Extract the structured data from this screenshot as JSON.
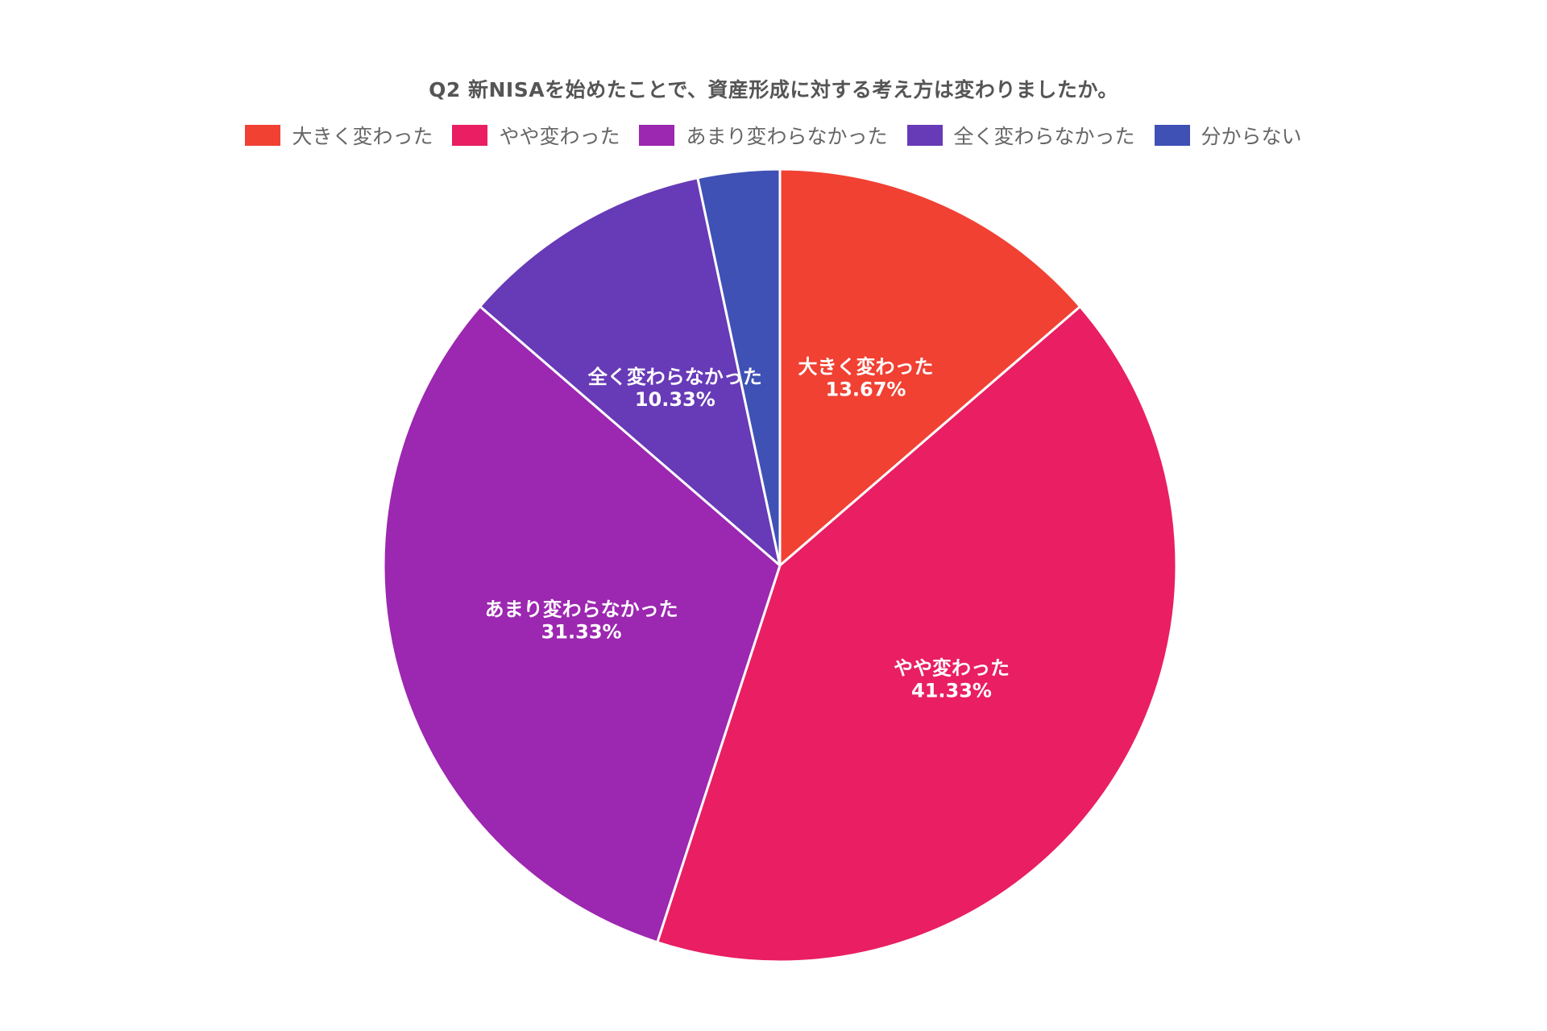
{
  "chart_data": {
    "type": "pie",
    "title": "Q2 新NISAを始めたことで、資産形成に対する考え方は変わりましたか。",
    "legend_position": "top",
    "categories": [
      "大きく変わった",
      "やや変わった",
      "あまり変わらなかった",
      "全く変わらなかった",
      "分からない"
    ],
    "values": [
      13.67,
      41.33,
      31.33,
      10.33,
      3.33
    ],
    "data_labels": [
      "13.67%",
      "41.33%",
      "31.33%",
      "10.33%",
      ""
    ],
    "show_label": [
      true,
      true,
      true,
      true,
      false
    ],
    "colors": [
      "#F04133",
      "#E91E63",
      "#9C27B0",
      "#673AB7",
      "#3F51B5"
    ],
    "start_angle_deg": 0,
    "direction": "clockwise"
  }
}
